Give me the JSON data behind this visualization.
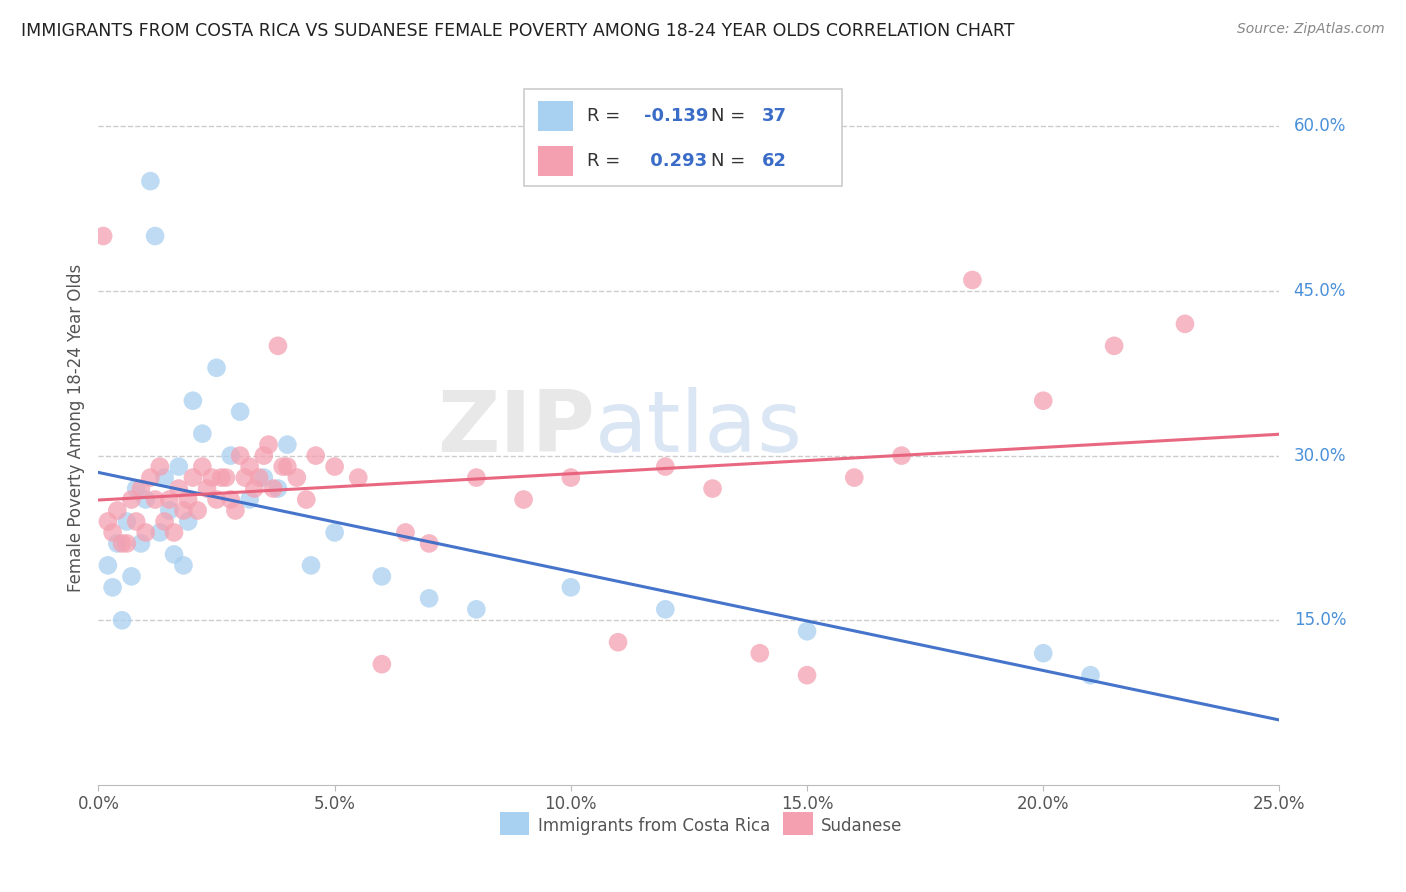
{
  "title": "IMMIGRANTS FROM COSTA RICA VS SUDANESE FEMALE POVERTY AMONG 18-24 YEAR OLDS CORRELATION CHART",
  "source": "Source: ZipAtlas.com",
  "ylabel": "Female Poverty Among 18-24 Year Olds",
  "xlim": [
    0.0,
    0.25
  ],
  "ylim": [
    0.0,
    0.65
  ],
  "xticks": [
    0.0,
    0.05,
    0.1,
    0.15,
    0.2,
    0.25
  ],
  "xticklabels": [
    "0.0%",
    "5.0%",
    "10.0%",
    "15.0%",
    "20.0%",
    "25.0%"
  ],
  "yticks_right": [
    0.15,
    0.3,
    0.45,
    0.6
  ],
  "ytick_right_labels": [
    "15.0%",
    "30.0%",
    "45.0%",
    "60.0%"
  ],
  "grid_color": "#cccccc",
  "background_color": "#ffffff",
  "watermark_zip": "ZIP",
  "watermark_atlas": "atlas",
  "series": [
    {
      "name": "Immigrants from Costa Rica",
      "R": -0.139,
      "N": 37,
      "color": "#a8d0f0",
      "line_color": "#3b6cc7",
      "x": [
        0.002,
        0.003,
        0.004,
        0.005,
        0.006,
        0.007,
        0.008,
        0.009,
        0.01,
        0.011,
        0.012,
        0.013,
        0.014,
        0.015,
        0.016,
        0.017,
        0.018,
        0.019,
        0.02,
        0.022,
        0.025,
        0.028,
        0.03,
        0.032,
        0.035,
        0.038,
        0.04,
        0.045,
        0.05,
        0.06,
        0.07,
        0.08,
        0.1,
        0.12,
        0.15,
        0.2,
        0.21
      ],
      "y": [
        0.2,
        0.18,
        0.22,
        0.15,
        0.24,
        0.19,
        0.27,
        0.22,
        0.26,
        0.55,
        0.5,
        0.23,
        0.28,
        0.25,
        0.21,
        0.29,
        0.2,
        0.24,
        0.35,
        0.32,
        0.38,
        0.3,
        0.34,
        0.26,
        0.28,
        0.27,
        0.31,
        0.2,
        0.23,
        0.19,
        0.17,
        0.16,
        0.18,
        0.16,
        0.14,
        0.12,
        0.1
      ]
    },
    {
      "name": "Sudanese",
      "R": 0.293,
      "N": 62,
      "color": "#f4a0b0",
      "line_color": "#e8607a",
      "x": [
        0.001,
        0.002,
        0.003,
        0.004,
        0.005,
        0.006,
        0.007,
        0.008,
        0.009,
        0.01,
        0.011,
        0.012,
        0.013,
        0.014,
        0.015,
        0.016,
        0.017,
        0.018,
        0.019,
        0.02,
        0.021,
        0.022,
        0.023,
        0.024,
        0.025,
        0.026,
        0.027,
        0.028,
        0.029,
        0.03,
        0.031,
        0.032,
        0.033,
        0.034,
        0.035,
        0.036,
        0.037,
        0.038,
        0.039,
        0.04,
        0.042,
        0.044,
        0.046,
        0.05,
        0.055,
        0.06,
        0.065,
        0.07,
        0.08,
        0.09,
        0.1,
        0.11,
        0.12,
        0.13,
        0.14,
        0.15,
        0.16,
        0.17,
        0.185,
        0.2,
        0.215,
        0.23
      ],
      "y": [
        0.5,
        0.24,
        0.23,
        0.25,
        0.22,
        0.22,
        0.26,
        0.24,
        0.27,
        0.23,
        0.28,
        0.26,
        0.29,
        0.24,
        0.26,
        0.23,
        0.27,
        0.25,
        0.26,
        0.28,
        0.25,
        0.29,
        0.27,
        0.28,
        0.26,
        0.28,
        0.28,
        0.26,
        0.25,
        0.3,
        0.28,
        0.29,
        0.27,
        0.28,
        0.3,
        0.31,
        0.27,
        0.4,
        0.29,
        0.29,
        0.28,
        0.26,
        0.3,
        0.29,
        0.28,
        0.11,
        0.23,
        0.22,
        0.28,
        0.26,
        0.28,
        0.13,
        0.29,
        0.27,
        0.12,
        0.1,
        0.28,
        0.3,
        0.46,
        0.35,
        0.4,
        0.42
      ]
    }
  ]
}
